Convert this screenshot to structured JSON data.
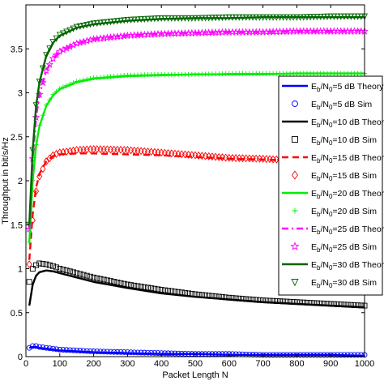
{
  "chart_data": {
    "type": "line",
    "xlabel": "Packet Length N",
    "ylabel": "Throughput in bit/s/Hz",
    "xlim": [
      0,
      1000
    ],
    "ylim": [
      0,
      4
    ],
    "xticks": [
      "0",
      "100",
      "200",
      "300",
      "400",
      "500",
      "600",
      "700",
      "800",
      "900",
      "1000"
    ],
    "yticks": [
      "0",
      "0.5",
      "1",
      "1.5",
      "2",
      "2.5",
      "3",
      "3.5"
    ],
    "legend_position": "right",
    "series": [
      {
        "name": "Eb/N0=5 dB Theory",
        "kind": "theory",
        "color": "#0000ff",
        "dash": "solid",
        "x": [
          10,
          20,
          30,
          40,
          60,
          80,
          100,
          150,
          200,
          300,
          400,
          500,
          600,
          700,
          800,
          900,
          1000
        ],
        "y": [
          0.1,
          0.11,
          0.11,
          0.1,
          0.09,
          0.08,
          0.07,
          0.06,
          0.05,
          0.04,
          0.03,
          0.03,
          0.02,
          0.02,
          0.02,
          0.02,
          0.01
        ]
      },
      {
        "name": "Eb/N0=5 dB Sim",
        "kind": "sim",
        "color": "#0000ff",
        "marker": "circle",
        "x": [
          10,
          20,
          30,
          40,
          60,
          80,
          100,
          150,
          200,
          300,
          400,
          500,
          600,
          700,
          800,
          900,
          1000
        ],
        "y": [
          0.1,
          0.12,
          0.12,
          0.11,
          0.1,
          0.09,
          0.08,
          0.07,
          0.06,
          0.05,
          0.04,
          0.03,
          0.03,
          0.02,
          0.02,
          0.02,
          0.02
        ]
      },
      {
        "name": "Eb/N0=10 dB Theory",
        "kind": "theory",
        "color": "#000000",
        "dash": "solid",
        "x": [
          10,
          20,
          30,
          40,
          60,
          80,
          100,
          150,
          200,
          300,
          400,
          500,
          600,
          700,
          800,
          900,
          1000
        ],
        "y": [
          0.58,
          0.82,
          0.92,
          0.96,
          0.98,
          0.97,
          0.95,
          0.9,
          0.85,
          0.78,
          0.72,
          0.68,
          0.65,
          0.62,
          0.6,
          0.58,
          0.56
        ]
      },
      {
        "name": "Eb/N0=10 dB Sim",
        "kind": "sim",
        "color": "#000000",
        "marker": "square",
        "x": [
          10,
          20,
          30,
          40,
          60,
          80,
          100,
          150,
          200,
          300,
          400,
          500,
          600,
          700,
          800,
          900,
          1000
        ],
        "y": [
          0.85,
          1.0,
          1.04,
          1.06,
          1.05,
          1.03,
          1.0,
          0.95,
          0.9,
          0.82,
          0.76,
          0.71,
          0.67,
          0.64,
          0.62,
          0.6,
          0.58
        ]
      },
      {
        "name": "Eb/N0=15 dB Theory",
        "kind": "theory",
        "color": "#ff0000",
        "dash": "dashed",
        "x": [
          10,
          20,
          30,
          40,
          60,
          80,
          100,
          150,
          200,
          300,
          400,
          500,
          600,
          700,
          800,
          900,
          1000
        ],
        "y": [
          1.1,
          1.62,
          1.92,
          2.08,
          2.22,
          2.28,
          2.3,
          2.31,
          2.31,
          2.3,
          2.29,
          2.27,
          2.25,
          2.24,
          2.23,
          2.22,
          2.21
        ]
      },
      {
        "name": "Eb/N0=15 dB Sim",
        "kind": "sim",
        "color": "#ff0000",
        "marker": "diamond",
        "x": [
          10,
          20,
          30,
          40,
          60,
          80,
          100,
          150,
          200,
          300,
          400,
          500,
          600,
          700,
          800,
          900,
          1000
        ],
        "y": [
          1.05,
          1.55,
          1.88,
          2.05,
          2.22,
          2.29,
          2.32,
          2.35,
          2.36,
          2.35,
          2.32,
          2.29,
          2.26,
          2.25,
          2.23,
          2.22,
          2.21
        ]
      },
      {
        "name": "Eb/N0=20 dB Theory",
        "kind": "theory",
        "color": "#00ee00",
        "dash": "solid",
        "x": [
          10,
          20,
          30,
          40,
          60,
          80,
          100,
          150,
          200,
          300,
          400,
          500,
          600,
          700,
          800,
          900,
          1000
        ],
        "y": [
          1.3,
          2.0,
          2.4,
          2.62,
          2.85,
          2.97,
          3.04,
          3.12,
          3.16,
          3.19,
          3.2,
          3.21,
          3.21,
          3.21,
          3.22,
          3.22,
          3.22
        ]
      },
      {
        "name": "Eb/N0=20 dB Sim",
        "kind": "sim",
        "color": "#00ee00",
        "marker": "plus",
        "x": [
          10,
          20,
          30,
          40,
          60,
          80,
          100,
          150,
          200,
          300,
          400,
          500,
          600,
          700,
          800,
          900,
          1000
        ],
        "y": [
          1.3,
          2.0,
          2.41,
          2.63,
          2.86,
          2.98,
          3.05,
          3.13,
          3.17,
          3.2,
          3.21,
          3.21,
          3.22,
          3.22,
          3.22,
          3.22,
          3.22
        ]
      },
      {
        "name": "Eb/N0=25 dB Theory",
        "kind": "theory",
        "color": "#ff00ff",
        "dash": "dashdot",
        "x": [
          10,
          20,
          30,
          40,
          60,
          80,
          100,
          150,
          200,
          300,
          400,
          500,
          600,
          700,
          800,
          900,
          1000
        ],
        "y": [
          1.45,
          2.25,
          2.72,
          2.98,
          3.25,
          3.39,
          3.47,
          3.56,
          3.61,
          3.65,
          3.67,
          3.68,
          3.69,
          3.69,
          3.7,
          3.7,
          3.71
        ]
      },
      {
        "name": "Eb/N0=25 dB Sim",
        "kind": "sim",
        "color": "#ff00ff",
        "marker": "star",
        "x": [
          10,
          20,
          30,
          40,
          60,
          80,
          100,
          150,
          200,
          300,
          400,
          500,
          600,
          700,
          800,
          900,
          1000
        ],
        "y": [
          1.45,
          2.25,
          2.72,
          2.98,
          3.25,
          3.39,
          3.47,
          3.56,
          3.61,
          3.65,
          3.67,
          3.68,
          3.69,
          3.69,
          3.7,
          3.7,
          3.7
        ]
      },
      {
        "name": "Eb/N0=30 dB Theory",
        "kind": "theory",
        "color": "#006600",
        "dash": "solid",
        "x": [
          10,
          20,
          30,
          40,
          60,
          80,
          100,
          150,
          200,
          300,
          400,
          500,
          600,
          700,
          800,
          900,
          1000
        ],
        "y": [
          1.5,
          2.35,
          2.85,
          3.12,
          3.42,
          3.57,
          3.65,
          3.74,
          3.78,
          3.82,
          3.84,
          3.85,
          3.85,
          3.86,
          3.86,
          3.86,
          3.86
        ]
      },
      {
        "name": "Eb/N0=30 dB Sim",
        "kind": "sim",
        "color": "#006600",
        "marker": "triangle-down",
        "x": [
          10,
          20,
          30,
          40,
          60,
          80,
          100,
          150,
          200,
          300,
          400,
          500,
          600,
          700,
          800,
          900,
          1000
        ],
        "y": [
          1.5,
          2.35,
          2.86,
          3.13,
          3.43,
          3.58,
          3.66,
          3.75,
          3.79,
          3.83,
          3.85,
          3.85,
          3.86,
          3.86,
          3.86,
          3.87,
          3.87
        ]
      }
    ],
    "legend_entries": [
      {
        "snr": "5",
        "suffix": " dB Theory",
        "series": 0
      },
      {
        "snr": "5",
        "suffix": " dB Sim",
        "series": 1
      },
      {
        "snr": "10",
        "suffix": " dB Theory",
        "series": 2
      },
      {
        "snr": "10",
        "suffix": " dB Sim",
        "series": 3
      },
      {
        "snr": "15",
        "suffix": " dB Theory",
        "series": 4
      },
      {
        "snr": "15",
        "suffix": " dB Sim",
        "series": 5
      },
      {
        "snr": "20",
        "suffix": " dB Theory",
        "series": 6
      },
      {
        "snr": "20",
        "suffix": " dB Sim",
        "series": 7
      },
      {
        "snr": "25",
        "suffix": " dB Theory",
        "series": 8
      },
      {
        "snr": "25",
        "suffix": " dB Sim",
        "series": 9
      },
      {
        "snr": "30",
        "suffix": " dB Theory",
        "series": 10
      },
      {
        "snr": "30",
        "suffix": " dB Sim",
        "series": 11
      }
    ]
  }
}
